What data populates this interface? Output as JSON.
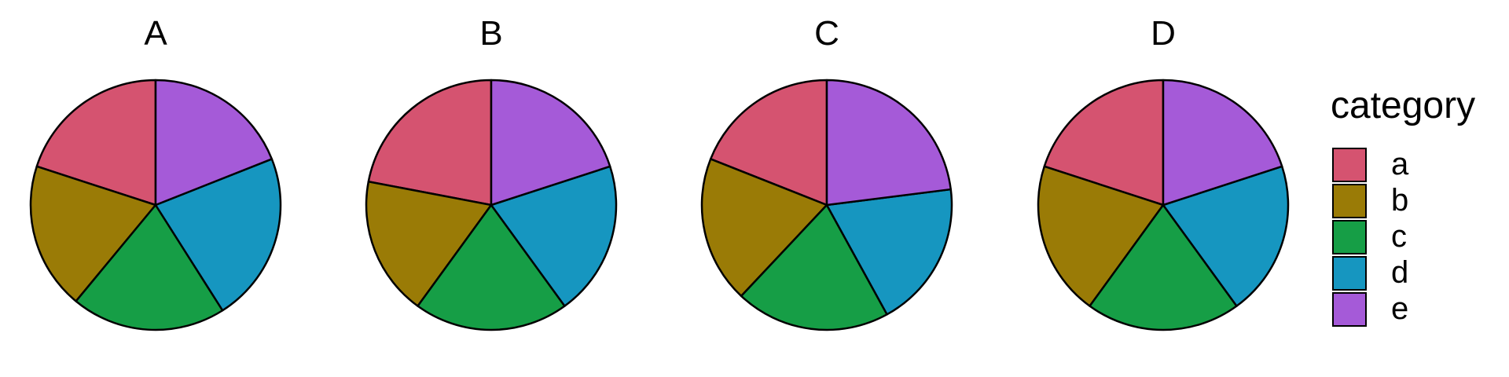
{
  "chart_data": {
    "type": "pie",
    "legend": {
      "title": "category",
      "position": "right",
      "entries": [
        "a",
        "b",
        "c",
        "d",
        "e"
      ]
    },
    "colors": {
      "a": "#D55370",
      "b": "#9A7B06",
      "c": "#169E46",
      "d": "#1696C0",
      "e": "#A55AD8"
    },
    "outline_color": "#000000",
    "panels": [
      {
        "title": "A",
        "categories": [
          "a",
          "b",
          "c",
          "d",
          "e"
        ],
        "values": [
          20,
          19,
          20,
          22,
          19
        ]
      },
      {
        "title": "B",
        "categories": [
          "a",
          "b",
          "c",
          "d",
          "e"
        ],
        "values": [
          22,
          18,
          20,
          20,
          20
        ]
      },
      {
        "title": "C",
        "categories": [
          "a",
          "b",
          "c",
          "d",
          "e"
        ],
        "values": [
          19,
          19,
          20,
          19,
          23
        ]
      },
      {
        "title": "D",
        "categories": [
          "a",
          "b",
          "c",
          "d",
          "e"
        ],
        "values": [
          20,
          20,
          20,
          20,
          20
        ]
      }
    ]
  }
}
